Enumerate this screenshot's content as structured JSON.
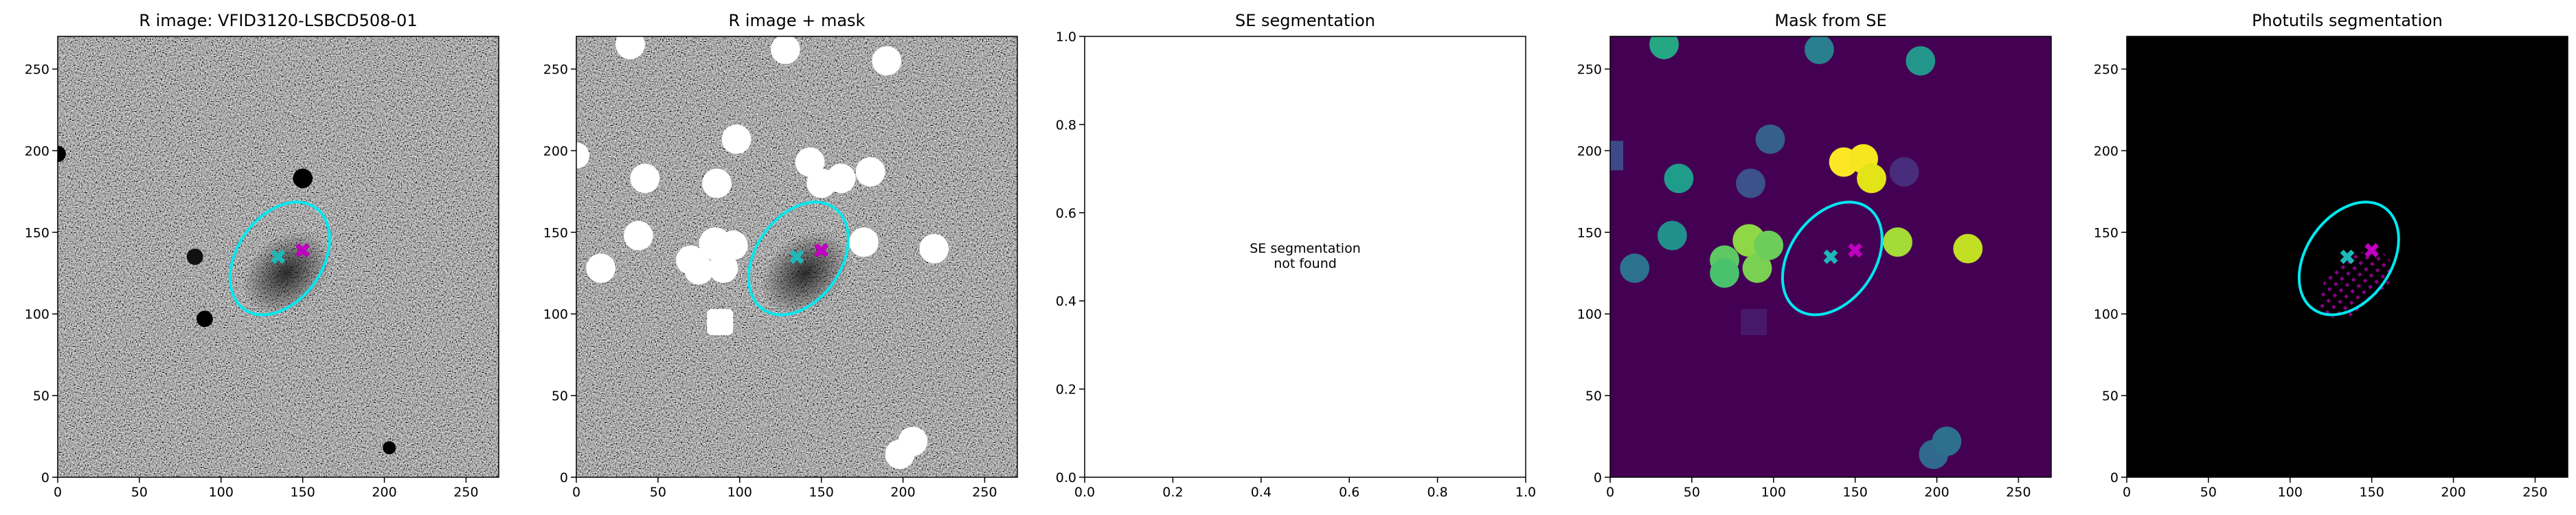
{
  "chart_data": [
    {
      "type": "image",
      "title": "R image: VFID3120-LSBCD508-01",
      "cmap": "gray",
      "xlim": [
        0,
        270
      ],
      "ylim": [
        0,
        270
      ],
      "xticks": [
        0,
        50,
        100,
        150,
        200,
        250
      ],
      "yticks": [
        0,
        50,
        100,
        150,
        200,
        250
      ],
      "ellipse": {
        "x": 136,
        "y": 134,
        "width": 76,
        "height": 52,
        "angle": 55,
        "color": "#00e8f0"
      },
      "markers": [
        {
          "x": 135,
          "y": 135,
          "color": "#1fb8b8"
        },
        {
          "x": 150,
          "y": 139,
          "color": "#c000c0"
        }
      ]
    },
    {
      "type": "image",
      "title": "R image + mask",
      "cmap": "gray",
      "xlim": [
        0,
        270
      ],
      "ylim": [
        0,
        270
      ],
      "xticks": [
        0,
        50,
        100,
        150,
        200,
        250
      ],
      "yticks": [
        0,
        50,
        100,
        150,
        200,
        250
      ],
      "ellipse": {
        "x": 136,
        "y": 134,
        "width": 76,
        "height": 52,
        "angle": 55,
        "color": "#00e8f0"
      },
      "markers": [
        {
          "x": 135,
          "y": 135,
          "color": "#1fb8b8"
        },
        {
          "x": 150,
          "y": 139,
          "color": "#c000c0"
        }
      ]
    },
    {
      "type": "empty",
      "title": "SE segmentation",
      "xlim": [
        0,
        1
      ],
      "ylim": [
        0,
        1
      ],
      "xticks": [
        {
          "value": 0,
          "label": "0.0"
        },
        0.2,
        0.4,
        0.6,
        0.8,
        {
          "value": 1,
          "label": "1.0"
        }
      ],
      "yticks": [
        {
          "value": 0,
          "label": "0.0"
        },
        0.2,
        0.4,
        0.6,
        0.8,
        {
          "value": 1,
          "label": "1.0"
        }
      ],
      "annotation": [
        "SE segmentation",
        "not found"
      ]
    },
    {
      "type": "image",
      "title": "Mask from SE",
      "cmap": "viridis",
      "xlim": [
        0,
        270
      ],
      "ylim": [
        0,
        270
      ],
      "xticks": [
        0,
        50,
        100,
        150,
        200,
        250
      ],
      "yticks": [
        0,
        50,
        100,
        150,
        200,
        250
      ],
      "ellipse": {
        "x": 136,
        "y": 134,
        "width": 76,
        "height": 52,
        "angle": 55,
        "color": "#00e8f0"
      },
      "markers": [
        {
          "x": 135,
          "y": 135,
          "color": "#1fb8b8"
        },
        {
          "x": 150,
          "y": 139,
          "color": "#c000c0"
        }
      ]
    },
    {
      "type": "image",
      "title": "Photutils segmentation",
      "cmap": "magma",
      "xlim": [
        0,
        270
      ],
      "ylim": [
        0,
        270
      ],
      "xticks": [
        0,
        50,
        100,
        150,
        200,
        250
      ],
      "yticks": [
        0,
        50,
        100,
        150,
        200,
        250
      ],
      "ellipse": {
        "x": 136,
        "y": 134,
        "width": 76,
        "height": 52,
        "angle": 55,
        "color": "#00e8f0"
      },
      "markers": [
        {
          "x": 135,
          "y": 135,
          "color": "#1fb8b8"
        },
        {
          "x": 150,
          "y": 139,
          "color": "#c000c0"
        }
      ]
    }
  ]
}
